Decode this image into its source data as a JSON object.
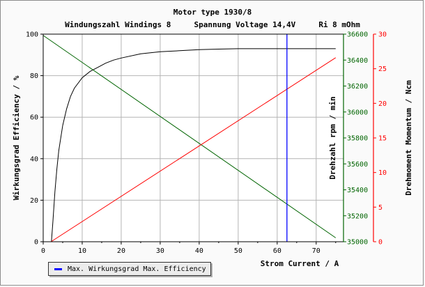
{
  "chart_data": {
    "type": "line",
    "title": "Motor type 1930/8",
    "subtitle": "Windungszahl Windings 8     Spannung Voltage 14,4V     Ri 8 mOhm",
    "xlabel": "Strom Current / A",
    "xlim": [
      0,
      77
    ],
    "xticks": [
      0,
      10,
      20,
      30,
      40,
      50,
      60,
      70
    ],
    "axes": {
      "efficiency": {
        "label": "Wirkungsgrad Efficiency / %",
        "ylim": [
          0,
          100
        ],
        "ticks": [
          0,
          20,
          40,
          60,
          80,
          100
        ],
        "color": "#000000"
      },
      "rpm": {
        "label": "Drehzahl rpm / min",
        "ylim": [
          35000,
          36600
        ],
        "ticks": [
          35000,
          35200,
          35400,
          35600,
          35800,
          36000,
          36200,
          36400,
          36600
        ],
        "color": "#006400"
      },
      "torque": {
        "label": "Drehmoment Momentum / Ncm",
        "ylim": [
          0,
          30
        ],
        "ticks": [
          0,
          5,
          10,
          15,
          20,
          25,
          30
        ],
        "color": "#ff0000"
      }
    },
    "series": [
      {
        "axis": "efficiency",
        "color": "#000000",
        "x": [
          2.1,
          2.5,
          3,
          3.5,
          4,
          5,
          6,
          7,
          8,
          10,
          12,
          14,
          16,
          18,
          20,
          25,
          30,
          35,
          40,
          45,
          50,
          55,
          60,
          65,
          70,
          75
        ],
        "y": [
          0,
          10,
          24,
          35,
          44,
          56,
          64,
          70,
          74,
          79,
          82,
          84,
          86,
          87.5,
          88.5,
          90.5,
          91.5,
          92,
          92.5,
          92.8,
          93,
          93,
          93,
          93,
          93,
          93
        ]
      },
      {
        "axis": "rpm",
        "color": "#006400",
        "x": [
          0,
          75
        ],
        "y": [
          36590,
          35030
        ]
      },
      {
        "axis": "torque",
        "color": "#ff0000",
        "x": [
          2,
          75
        ],
        "y": [
          0,
          26.6
        ]
      }
    ],
    "marker_x": 62.5,
    "grid": true,
    "legend": {
      "position": "bottom-left",
      "entries": [
        {
          "label": "Max. Wirkungsgrad Max. Efficiency",
          "color": "#0000ff"
        }
      ]
    }
  }
}
